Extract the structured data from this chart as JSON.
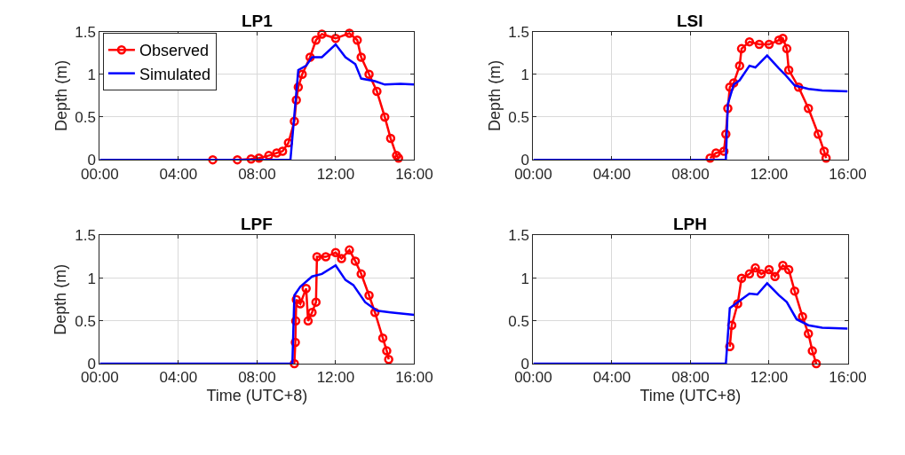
{
  "chart_data": [
    {
      "type": "line",
      "title": "LP1",
      "ylabel": "Depth (m)",
      "xlim": [
        0,
        16
      ],
      "ylim": [
        0,
        1.5
      ],
      "grid": true,
      "legend": "top left",
      "xticks": [
        {
          "value": 0,
          "label": "00:00"
        },
        {
          "value": 4,
          "label": "04:00"
        },
        {
          "value": 8,
          "label": "08:00"
        },
        {
          "value": 12,
          "label": "12:00"
        },
        {
          "value": 16,
          "label": "16:00"
        }
      ],
      "yticks": [
        0,
        0.5,
        1,
        1.5
      ],
      "series": [
        {
          "name": "Observed",
          "color": "#ff0000",
          "marker": "circle",
          "x": [
            5.75,
            7.0,
            7.7,
            8.1,
            8.6,
            9.0,
            9.3,
            9.6,
            9.9,
            10.0,
            10.1,
            10.3,
            10.7,
            11.0,
            11.3,
            12.0,
            12.7,
            13.1,
            13.3,
            13.7,
            14.1,
            14.5,
            14.8,
            15.1,
            15.2
          ],
          "values": [
            0,
            0,
            0.01,
            0.02,
            0.05,
            0.08,
            0.1,
            0.2,
            0.45,
            0.7,
            0.85,
            1.0,
            1.2,
            1.4,
            1.47,
            1.42,
            1.48,
            1.4,
            1.2,
            1.0,
            0.8,
            0.5,
            0.25,
            0.05,
            0.02
          ]
        },
        {
          "name": "Simulated",
          "color": "#0000ff",
          "marker": "none",
          "x": [
            0,
            9.7,
            10.1,
            10.5,
            10.8,
            11.3,
            12.0,
            12.5,
            13.0,
            13.3,
            14.0,
            14.5,
            15.3,
            16
          ],
          "values": [
            0,
            0,
            1.05,
            1.1,
            1.2,
            1.2,
            1.35,
            1.2,
            1.12,
            0.95,
            0.92,
            0.88,
            0.89,
            0.88
          ]
        }
      ]
    },
    {
      "type": "line",
      "title": "LSI",
      "ylabel": "Depth (m)",
      "xlim": [
        0,
        16
      ],
      "ylim": [
        0,
        1.5
      ],
      "grid": true,
      "xticks": [
        {
          "value": 0,
          "label": "00:00"
        },
        {
          "value": 4,
          "label": "04:00"
        },
        {
          "value": 8,
          "label": "08:00"
        },
        {
          "value": 12,
          "label": "12:00"
        },
        {
          "value": 16,
          "label": "16:00"
        }
      ],
      "yticks": [
        0,
        0.5,
        1,
        1.5
      ],
      "series": [
        {
          "color": "#ff0000",
          "marker": "circle",
          "x": [
            9.0,
            9.3,
            9.7,
            9.8,
            9.9,
            10.0,
            10.2,
            10.5,
            10.6,
            11.0,
            11.5,
            12.0,
            12.5,
            12.7,
            12.9,
            13.0,
            13.5,
            14.0,
            14.5,
            14.8,
            14.9
          ],
          "values": [
            0.02,
            0.08,
            0.1,
            0.3,
            0.6,
            0.85,
            0.9,
            1.1,
            1.3,
            1.38,
            1.35,
            1.35,
            1.4,
            1.42,
            1.3,
            1.05,
            0.85,
            0.6,
            0.3,
            0.1,
            0.02
          ]
        },
        {
          "color": "#0000ff",
          "marker": "none",
          "x": [
            0,
            9.8,
            9.9,
            10.2,
            10.5,
            11.0,
            11.3,
            11.9,
            12.5,
            12.8,
            13.3,
            14.0,
            14.7,
            16
          ],
          "values": [
            0,
            0,
            0.65,
            0.88,
            0.93,
            1.1,
            1.08,
            1.22,
            1.07,
            1.0,
            0.87,
            0.83,
            0.81,
            0.8
          ]
        }
      ]
    },
    {
      "type": "line",
      "title": "LPF",
      "xlabel": "Time (UTC+8)",
      "ylabel": "Depth (m)",
      "xlim": [
        0,
        16
      ],
      "ylim": [
        0,
        1.5
      ],
      "grid": true,
      "xticks": [
        {
          "value": 0,
          "label": "00:00"
        },
        {
          "value": 4,
          "label": "04:00"
        },
        {
          "value": 8,
          "label": "08:00"
        },
        {
          "value": 12,
          "label": "12:00"
        },
        {
          "value": 16,
          "label": "16:00"
        }
      ],
      "yticks": [
        0,
        0.5,
        1,
        1.5
      ],
      "series": [
        {
          "color": "#ff0000",
          "marker": "circle",
          "x": [
            9.9,
            9.95,
            9.97,
            10.0,
            10.2,
            10.5,
            10.6,
            10.8,
            11.0,
            11.05,
            11.5,
            12.0,
            12.3,
            12.7,
            13.0,
            13.3,
            13.7,
            14.0,
            14.4,
            14.6,
            14.7
          ],
          "values": [
            0,
            0.25,
            0.5,
            0.75,
            0.7,
            0.88,
            0.5,
            0.6,
            0.72,
            1.25,
            1.25,
            1.3,
            1.23,
            1.33,
            1.2,
            1.05,
            0.8,
            0.6,
            0.3,
            0.15,
            0.05
          ]
        },
        {
          "color": "#0000ff",
          "marker": "none",
          "x": [
            0,
            9.8,
            9.9,
            10.2,
            10.8,
            11.3,
            12.0,
            12.5,
            12.9,
            13.5,
            14.1,
            14.8,
            16
          ],
          "values": [
            0,
            0,
            0.8,
            0.9,
            1.02,
            1.05,
            1.15,
            0.98,
            0.92,
            0.72,
            0.62,
            0.6,
            0.57
          ]
        }
      ]
    },
    {
      "type": "line",
      "title": "LPH",
      "xlabel": "Time (UTC+8)",
      "xlim": [
        0,
        16
      ],
      "ylim": [
        0,
        1.5
      ],
      "grid": true,
      "xticks": [
        {
          "value": 0,
          "label": "00:00"
        },
        {
          "value": 4,
          "label": "04:00"
        },
        {
          "value": 8,
          "label": "08:00"
        },
        {
          "value": 12,
          "label": "12:00"
        },
        {
          "value": 16,
          "label": "16:00"
        }
      ],
      "yticks": [
        0,
        0.5,
        1,
        1.5
      ],
      "series": [
        {
          "color": "#ff0000",
          "marker": "circle",
          "x": [
            10.0,
            10.1,
            10.4,
            10.6,
            11.0,
            11.3,
            11.6,
            12.0,
            12.3,
            12.7,
            13.0,
            13.3,
            13.7,
            14.0,
            14.2,
            14.4
          ],
          "values": [
            0.2,
            0.45,
            0.7,
            1.0,
            1.05,
            1.12,
            1.05,
            1.1,
            1.02,
            1.15,
            1.1,
            0.85,
            0.55,
            0.35,
            0.15,
            0
          ]
        },
        {
          "color": "#0000ff",
          "marker": "none",
          "x": [
            0,
            9.8,
            10.0,
            10.4,
            11.0,
            11.4,
            11.9,
            12.5,
            12.9,
            13.4,
            14.0,
            14.7,
            16
          ],
          "values": [
            0,
            0,
            0.65,
            0.72,
            0.82,
            0.81,
            0.94,
            0.8,
            0.72,
            0.52,
            0.45,
            0.42,
            0.41
          ]
        }
      ]
    }
  ]
}
